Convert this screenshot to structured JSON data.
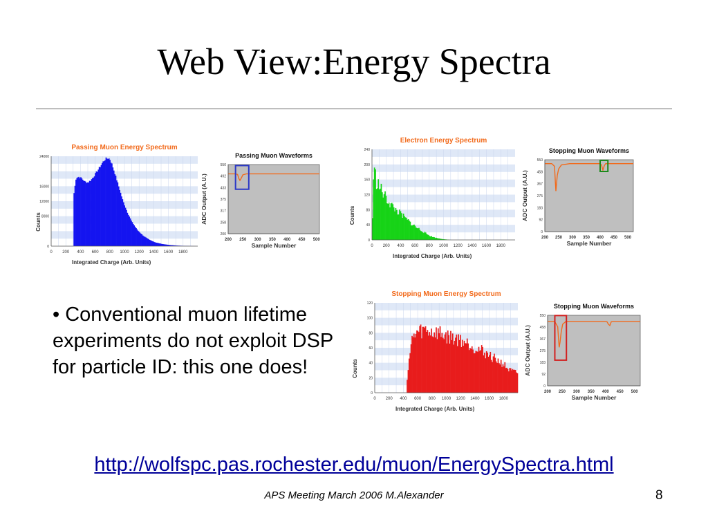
{
  "slide": {
    "title": "Web View:Energy Spectra",
    "bullet": "• Conventional muon lifetime experiments do not exploit DSP for particle ID: this one does!",
    "link": "http://wolfspc.pas.rochester.edu/muon/EnergySpectra.html",
    "footer": "APS Meeting March 2006 M.Alexander",
    "page_number": "8"
  },
  "chart_data": [
    {
      "type": "area",
      "title": "Passing Muon Energy Spectrum",
      "xlabel": "Integrated Charge (Arb. Units)",
      "ylabel": "Counts",
      "xlim": [
        0,
        2000
      ],
      "ylim": [
        0,
        24000
      ],
      "x_ticks": [
        "0",
        "200",
        "400",
        "600",
        "800",
        "1000",
        "1200",
        "1400",
        "1600",
        "1800"
      ],
      "y_ticks": [
        "0",
        "8000",
        "12000",
        "16000",
        "24000"
      ],
      "series": [
        {
          "color": "#1414f0",
          "x": [
            0,
            300,
            310,
            340,
            380,
            420,
            460,
            500,
            540,
            580,
            620,
            660,
            700,
            740,
            780,
            800,
            830,
            870,
            920,
            980,
            1040,
            1100,
            1180,
            1260,
            1340,
            1420,
            1520,
            1620,
            1720,
            1820,
            1920,
            2000
          ],
          "values": [
            0,
            0,
            14000,
            18300,
            18500,
            18000,
            17200,
            17000,
            17600,
            18600,
            19800,
            21000,
            22300,
            23300,
            23500,
            23200,
            21800,
            19300,
            16000,
            12000,
            9000,
            6500,
            4200,
            2700,
            1700,
            1000,
            550,
            300,
            150,
            70,
            30,
            0
          ]
        }
      ],
      "color": "#1414f0"
    },
    {
      "type": "line",
      "title": "Passing Muon Waveforms",
      "xlabel": "Sample Number",
      "ylabel": "ADC Output (A.U.)",
      "xlim": [
        200,
        510
      ],
      "ylim": [
        200,
        550
      ],
      "x_ticks": [
        "200",
        "250",
        "300",
        "350",
        "400",
        "450",
        "500"
      ],
      "y_ticks": [
        "200",
        "258",
        "317",
        "375",
        "433",
        "492",
        "550"
      ],
      "series": [
        {
          "color": "#f26a1b",
          "x": [
            200,
            225,
            232,
            236,
            240,
            244,
            250,
            262,
            300,
            400,
            510
          ],
          "values": [
            503,
            503,
            500,
            480,
            470,
            480,
            498,
            503,
            503,
            503,
            503
          ]
        }
      ],
      "highlight_box": {
        "color": "#2b39c7",
        "x_range": [
          225,
          270
        ],
        "y_range": [
          425,
          545
        ]
      }
    },
    {
      "type": "area",
      "title": "Electron Energy Spectrum",
      "xlabel": "Integrated Charge (Arb. Units)",
      "ylabel": "Counts",
      "xlim": [
        0,
        2000
      ],
      "ylim": [
        0,
        240
      ],
      "x_ticks": [
        "0",
        "200",
        "400",
        "600",
        "800",
        "1000",
        "1200",
        "1400",
        "1600",
        "1800"
      ],
      "y_ticks": [
        "0",
        "40",
        "80",
        "120",
        "160",
        "200",
        "240"
      ],
      "series": [
        {
          "color": "#17d317",
          "x": [
            0,
            20,
            40,
            60,
            80,
            120,
            180,
            240,
            300,
            380,
            460,
            540,
            620,
            700,
            760,
            820,
            880,
            960,
            1040,
            1100,
            2000
          ],
          "values": [
            0,
            170,
            180,
            155,
            150,
            135,
            115,
            100,
            85,
            72,
            58,
            45,
            33,
            24,
            16,
            10,
            6,
            3,
            1,
            0,
            0
          ]
        }
      ],
      "color": "#17d317"
    },
    {
      "type": "line",
      "title": "Stopping Muon Waveforms",
      "xlabel": "Sample Number",
      "ylabel": "ADC Output (A.U.)",
      "xlim": [
        200,
        520
      ],
      "ylim": [
        0,
        550
      ],
      "x_ticks": [
        "200",
        "250",
        "300",
        "350",
        "400",
        "450",
        "500"
      ],
      "y_ticks": [
        "0",
        "92",
        "183",
        "275",
        "367",
        "458",
        "550"
      ],
      "series": [
        {
          "color": "#f26a1b",
          "x": [
            200,
            225,
            235,
            238,
            240,
            242,
            245,
            250,
            260,
            290,
            400,
            405,
            410,
            415,
            420,
            520
          ],
          "values": [
            520,
            520,
            500,
            380,
            310,
            360,
            430,
            480,
            510,
            520,
            520,
            510,
            470,
            505,
            520,
            520
          ]
        }
      ],
      "highlight_box": {
        "color": "#1b8a1b",
        "x_range": [
          400,
          428
        ],
        "y_range": [
          460,
          545
        ]
      }
    },
    {
      "type": "area",
      "title": "Stopping Muon Energy Spectrum",
      "xlabel": "Integrated Charge (Arb. Units)",
      "ylabel": "Counts",
      "xlim": [
        0,
        2000
      ],
      "ylim": [
        0,
        120
      ],
      "x_ticks": [
        "0",
        "200",
        "400",
        "600",
        "800",
        "1000",
        "1200",
        "1400",
        "1600",
        "1800"
      ],
      "y_ticks": [
        "0",
        "20",
        "40",
        "60",
        "80",
        "100",
        "120"
      ],
      "series": [
        {
          "color": "#e81c1c",
          "x": [
            0,
            440,
            470,
            520,
            580,
            640,
            700,
            760,
            820,
            900,
            980,
            1060,
            1140,
            1220,
            1300,
            1400,
            1500,
            1600,
            1700,
            1800,
            1880,
            2000
          ],
          "values": [
            0,
            0,
            40,
            70,
            80,
            82,
            84,
            82,
            80,
            80,
            76,
            74,
            72,
            70,
            66,
            60,
            56,
            50,
            44,
            38,
            30,
            26
          ]
        }
      ],
      "color": "#e81c1c"
    },
    {
      "type": "line",
      "title": "Stopping Muon Waveforms",
      "xlabel": "Sample Number",
      "ylabel": "ADC Output (A.U.)",
      "xlim": [
        200,
        520
      ],
      "ylim": [
        0,
        550
      ],
      "x_ticks": [
        "200",
        "250",
        "300",
        "350",
        "400",
        "450",
        "500"
      ],
      "y_ticks": [
        "0",
        "92",
        "183",
        "275",
        "367",
        "458",
        "550"
      ],
      "series": [
        {
          "color": "#f26a1b",
          "x": [
            200,
            225,
            235,
            238,
            240,
            243,
            247,
            252,
            262,
            290,
            405,
            410,
            415,
            420,
            520
          ],
          "values": [
            500,
            500,
            460,
            360,
            300,
            340,
            420,
            480,
            500,
            500,
            500,
            480,
            470,
            500,
            500
          ]
        }
      ],
      "highlight_box": {
        "color": "#d22020",
        "x_range": [
          225,
          265
        ],
        "y_range": [
          200,
          548
        ]
      }
    }
  ]
}
